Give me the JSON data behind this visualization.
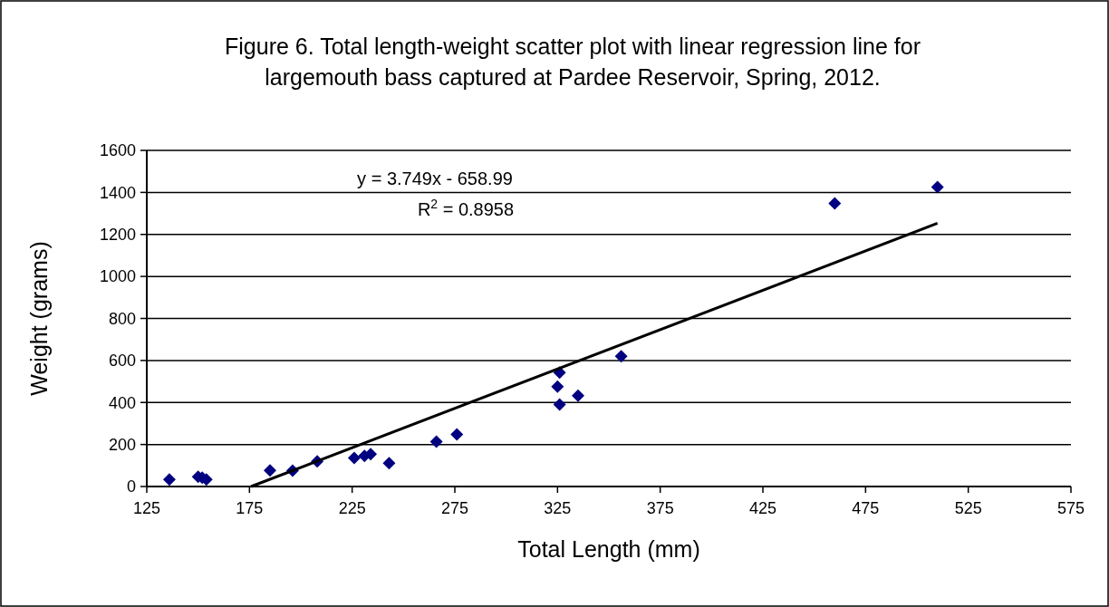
{
  "chart_data": {
    "type": "scatter",
    "title": "Figure 6.  Total length-weight scatter plot with linear regression line for largemouth bass captured at Pardee Reservoir, Spring, 2012.",
    "xlabel": "Total Length (mm)",
    "ylabel": "Weight (grams)",
    "xlim": [
      125,
      575
    ],
    "xticks": [
      125,
      175,
      225,
      275,
      325,
      375,
      425,
      475,
      525,
      575
    ],
    "ylim": [
      0,
      1600
    ],
    "yticks": [
      0,
      200,
      400,
      600,
      800,
      1000,
      1200,
      1400,
      1600
    ],
    "grid": "y",
    "marker": "diamond",
    "annotations": [
      "y = 3.749x - 658.99",
      "R$^{2}$ = 0.8958"
    ],
    "series": [
      {
        "color": "#000080",
        "x": [
          136,
          150,
          152,
          154,
          185,
          196,
          208,
          226,
          231,
          234,
          243,
          266,
          276,
          326,
          325,
          326,
          335,
          356,
          460,
          510
        ],
        "values": [
          33,
          46,
          42,
          33,
          77,
          76,
          120,
          136,
          146,
          154,
          111,
          213,
          248,
          542,
          475,
          390,
          432,
          620,
          1348,
          1425
        ]
      },
      {
        "type": "line",
        "color": "#000000",
        "line_style": "solid",
        "marker": "none",
        "x": [
          175.8,
          510
        ],
        "values": [
          0,
          1253
        ]
      }
    ]
  }
}
